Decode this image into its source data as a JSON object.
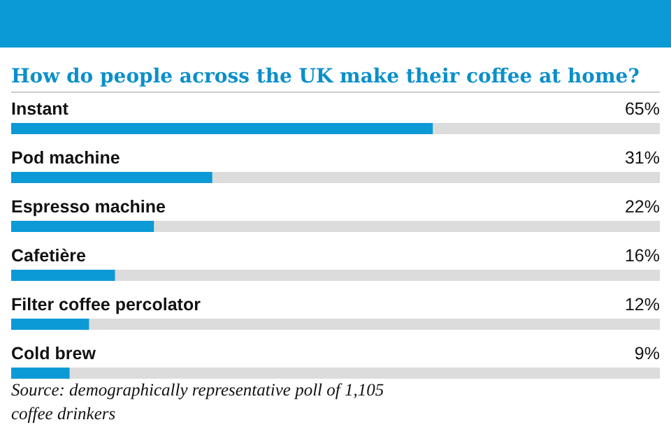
{
  "chart_data": {
    "type": "bar",
    "orientation": "horizontal",
    "title": "How do people across the UK make their coffee at home?",
    "categories": [
      "Instant",
      "Pod machine",
      "Espresso machine",
      "Cafetière",
      "Filter coffee percolator",
      "Cold brew"
    ],
    "values": [
      65,
      31,
      22,
      16,
      12,
      9
    ],
    "value_labels": [
      "65%",
      "31%",
      "22%",
      "16%",
      "12%",
      "9%"
    ],
    "color": "#0b9ad6",
    "xlim": [
      0,
      100
    ],
    "annotations": [
      "Source: demographically representative poll of 1,105 coffee drinkers"
    ]
  }
}
